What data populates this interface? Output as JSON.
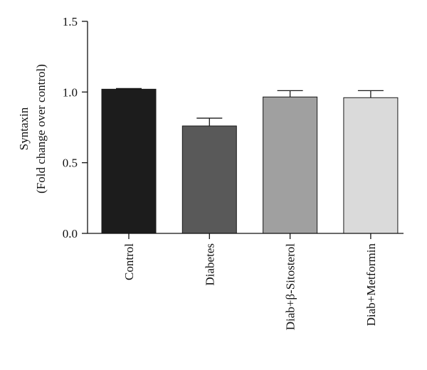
{
  "chart_data": {
    "type": "bar",
    "categories": [
      "Control",
      "Diabetes",
      "Diab+β-Sitosterol",
      "Diab+Metformin"
    ],
    "values": [
      1.02,
      0.76,
      0.965,
      0.96
    ],
    "errors": [
      0.005,
      0.055,
      0.045,
      0.05
    ],
    "bar_colors": [
      "#1c1c1c",
      "#595959",
      "#a0a0a0",
      "#dadada"
    ],
    "ylabel_lines": [
      "Syntaxin",
      "(Fold change over control)"
    ],
    "ylim": [
      0,
      1.5
    ],
    "yticks": [
      0.0,
      0.5,
      1.0,
      1.5
    ],
    "ytick_labels": [
      "0.0",
      "0.5",
      "1.0",
      "1.5"
    ],
    "grid": false,
    "legend": "none"
  }
}
